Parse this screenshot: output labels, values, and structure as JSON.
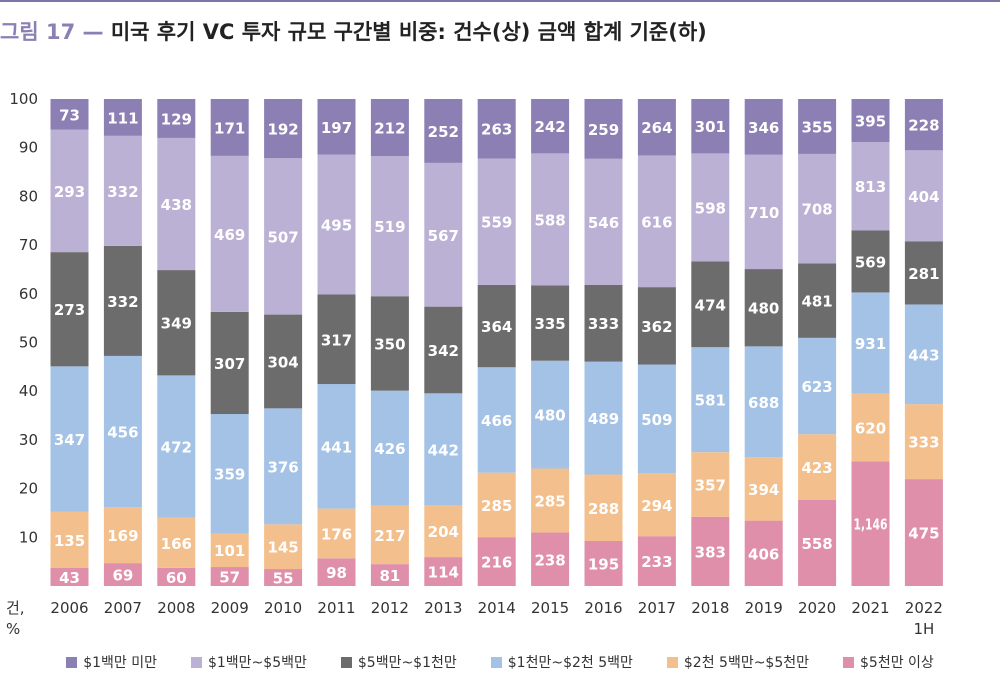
{
  "title": {
    "figure_label": "그림 17 —",
    "text": "미국 후기 VC 투자 규모 구간별 비중: 건수(상) 금액 합계 기준(하)"
  },
  "chart_data": {
    "type": "bar",
    "stacked": true,
    "normalized": true,
    "categories": [
      "2006",
      "2007",
      "2008",
      "2009",
      "2010",
      "2011",
      "2012",
      "2013",
      "2014",
      "2015",
      "2016",
      "2017",
      "2018",
      "2019",
      "2020",
      "2021",
      "2022 1H"
    ],
    "category_lines": [
      [
        "2006"
      ],
      [
        "2007"
      ],
      [
        "2008"
      ],
      [
        "2009"
      ],
      [
        "2010"
      ],
      [
        "2011"
      ],
      [
        "2012"
      ],
      [
        "2013"
      ],
      [
        "2014"
      ],
      [
        "2015"
      ],
      [
        "2016"
      ],
      [
        "2017"
      ],
      [
        "2018"
      ],
      [
        "2019"
      ],
      [
        "2020"
      ],
      [
        "2021"
      ],
      [
        "2022",
        "1H"
      ]
    ],
    "ylim": [
      0,
      100
    ],
    "yticks": [
      10,
      20,
      30,
      40,
      50,
      60,
      70,
      80,
      90,
      100
    ],
    "yunit_lines": [
      "건,",
      "%"
    ],
    "series": [
      {
        "name": "$5천만 이상",
        "color": "#df8fa9",
        "values": [
          43,
          69,
          60,
          57,
          55,
          98,
          81,
          114,
          216,
          238,
          195,
          233,
          383,
          406,
          558,
          1146,
          475
        ],
        "labels": [
          "43",
          "69",
          "60",
          "57",
          "55",
          "98",
          "81",
          "114",
          "216",
          "238",
          "195",
          "233",
          "383",
          "406",
          "558",
          "1,146",
          "475"
        ]
      },
      {
        "name": "$2천 5백만~$5천만",
        "color": "#f3bf8c",
        "values": [
          135,
          169,
          166,
          101,
          145,
          176,
          217,
          204,
          285,
          285,
          288,
          294,
          357,
          394,
          423,
          620,
          333
        ],
        "labels": [
          "135",
          "169",
          "166",
          "101",
          "145",
          "176",
          "217",
          "204",
          "285",
          "285",
          "288",
          "294",
          "357",
          "394",
          "423",
          "620",
          "333"
        ]
      },
      {
        "name": "$1천만~$2천 5백만",
        "color": "#a3c2e5",
        "values": [
          347,
          456,
          472,
          359,
          376,
          441,
          426,
          442,
          466,
          480,
          489,
          509,
          581,
          688,
          623,
          931,
          443
        ],
        "labels": [
          "347",
          "456",
          "472",
          "359",
          "376",
          "441",
          "426",
          "442",
          "466",
          "480",
          "489",
          "509",
          "581",
          "688",
          "623",
          "931",
          "443"
        ]
      },
      {
        "name": "$5백만~$1천만",
        "color": "#6c6c6c",
        "values": [
          273,
          332,
          349,
          307,
          304,
          317,
          350,
          342,
          364,
          335,
          333,
          362,
          474,
          480,
          481,
          569,
          281
        ],
        "labels": [
          "273",
          "332",
          "349",
          "307",
          "304",
          "317",
          "350",
          "342",
          "364",
          "335",
          "333",
          "362",
          "474",
          "480",
          "481",
          "569",
          "281"
        ]
      },
      {
        "name": "$1백만~$5백만",
        "color": "#bbb1d5",
        "values": [
          293,
          332,
          438,
          469,
          507,
          495,
          519,
          567,
          559,
          588,
          546,
          616,
          598,
          710,
          708,
          813,
          404
        ],
        "labels": [
          "293",
          "332",
          "438",
          "469",
          "507",
          "495",
          "519",
          "567",
          "559",
          "588",
          "546",
          "616",
          "598",
          "710",
          "708",
          "813",
          "404"
        ]
      },
      {
        "name": "$1백만 미만",
        "color": "#8b7fb3",
        "values": [
          73,
          111,
          129,
          171,
          192,
          197,
          212,
          252,
          263,
          242,
          259,
          264,
          301,
          346,
          355,
          395,
          228
        ],
        "labels": [
          "73",
          "111",
          "129",
          "171",
          "192",
          "197",
          "212",
          "252",
          "263",
          "242",
          "259",
          "264",
          "301",
          "346",
          "355",
          "395",
          "228"
        ]
      }
    ],
    "legend_order": [
      5,
      4,
      3,
      2,
      1,
      0
    ],
    "legend_position": "bottom",
    "grid": false
  }
}
